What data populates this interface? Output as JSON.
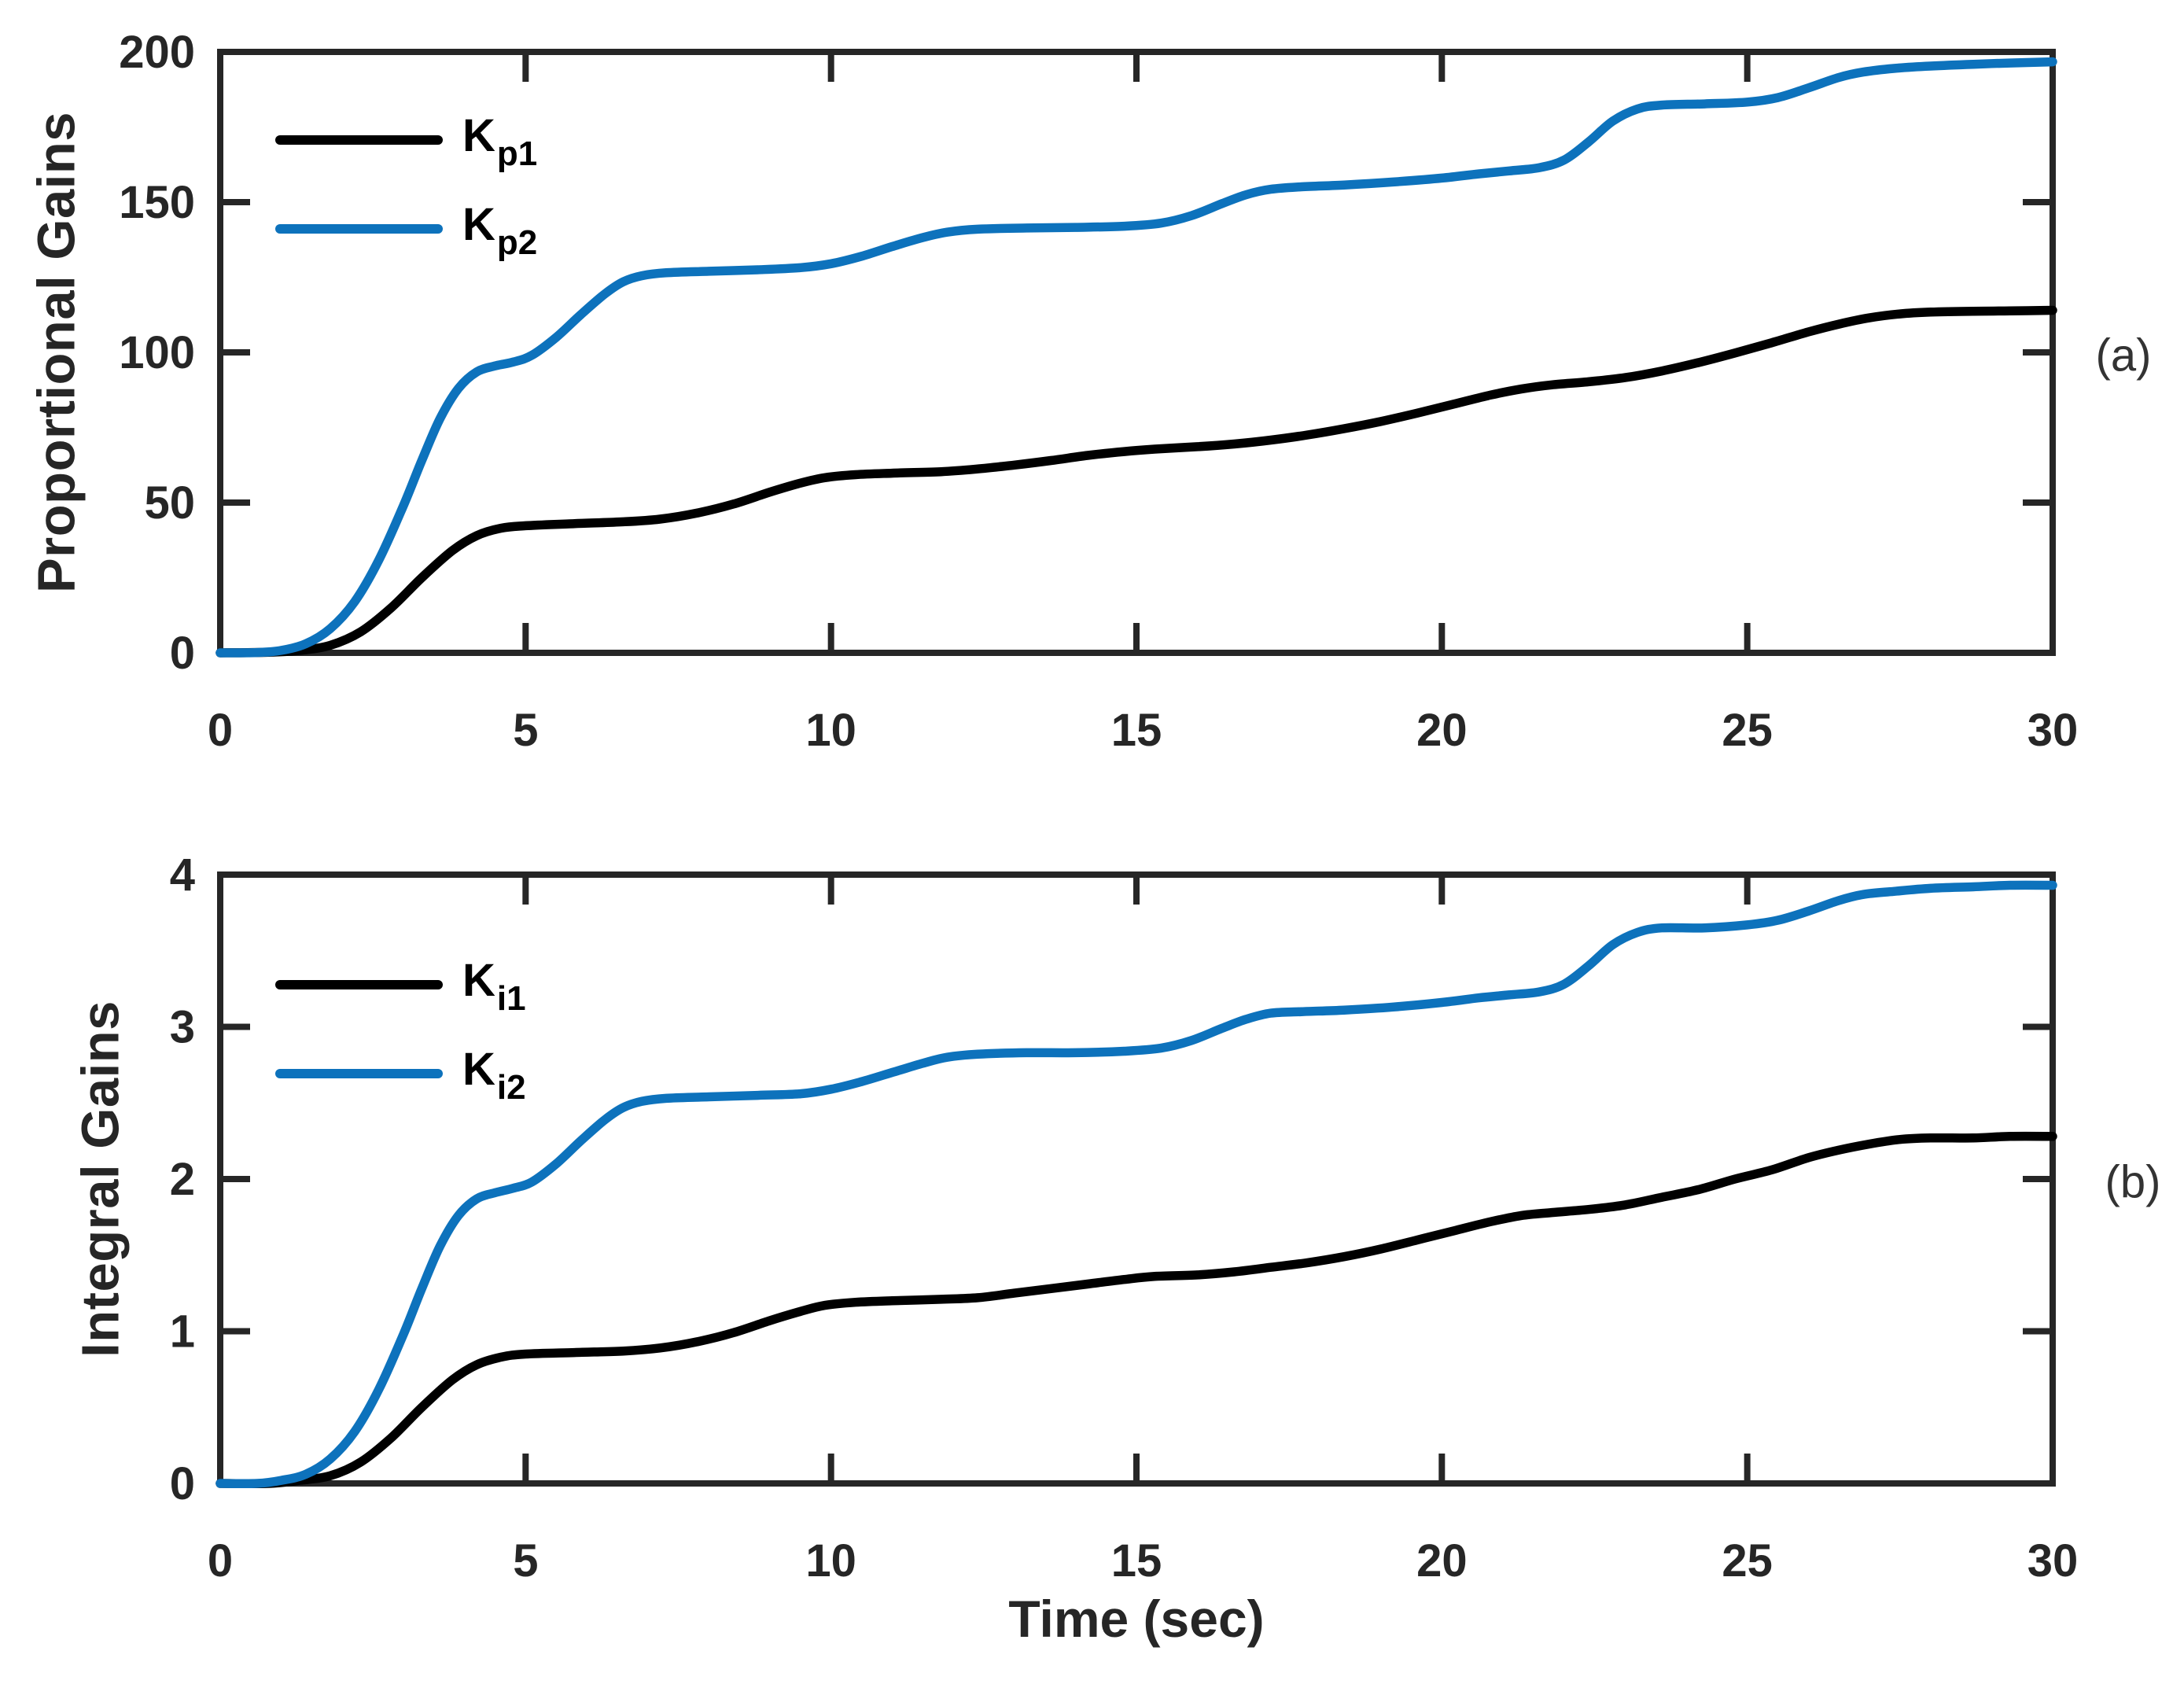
{
  "figure_background": "#ffffff",
  "axis_color": "#262626",
  "chart_data": [
    {
      "type": "line",
      "panel_label": "(a)",
      "title": "",
      "xlabel": "",
      "ylabel": "Proportional Gains",
      "xlim": [
        0,
        30
      ],
      "ylim": [
        0,
        200
      ],
      "xticks": [
        0,
        5,
        10,
        15,
        20,
        25,
        30
      ],
      "yticks": [
        0,
        50,
        100,
        150,
        200
      ],
      "grid": false,
      "legend_position": "upper-left-inside",
      "series": [
        {
          "name": "Kp1",
          "legend_main": "K",
          "legend_sub": "p1",
          "color": "#000000",
          "points": [
            [
              0,
              0
            ],
            [
              0.8,
              0.2
            ],
            [
              1.3,
              0.8
            ],
            [
              1.8,
              2.5
            ],
            [
              2.3,
              7
            ],
            [
              2.8,
              15
            ],
            [
              3.3,
              25
            ],
            [
              3.8,
              34
            ],
            [
              4.2,
              39
            ],
            [
              4.6,
              41.5
            ],
            [
              5,
              42.3
            ],
            [
              5.8,
              43
            ],
            [
              6.6,
              43.6
            ],
            [
              7.2,
              44.5
            ],
            [
              7.8,
              46.5
            ],
            [
              8.4,
              49.5
            ],
            [
              9,
              53.5
            ],
            [
              9.5,
              56.5
            ],
            [
              9.9,
              58.3
            ],
            [
              10.4,
              59.3
            ],
            [
              11,
              59.8
            ],
            [
              11.8,
              60.3
            ],
            [
              12.4,
              61.2
            ],
            [
              13,
              62.5
            ],
            [
              13.6,
              64
            ],
            [
              14.2,
              65.7
            ],
            [
              14.8,
              67
            ],
            [
              15.3,
              67.8
            ],
            [
              16,
              68.6
            ],
            [
              16.6,
              69.5
            ],
            [
              17.2,
              70.8
            ],
            [
              17.8,
              72.5
            ],
            [
              18.4,
              74.6
            ],
            [
              19,
              77
            ],
            [
              19.6,
              79.8
            ],
            [
              20.2,
              82.8
            ],
            [
              20.8,
              85.8
            ],
            [
              21.3,
              87.8
            ],
            [
              21.8,
              89.2
            ],
            [
              22.4,
              90.2
            ],
            [
              23,
              91.6
            ],
            [
              23.6,
              93.8
            ],
            [
              24.2,
              96.6
            ],
            [
              24.8,
              99.8
            ],
            [
              25.4,
              103.2
            ],
            [
              26,
              106.8
            ],
            [
              26.5,
              109.4
            ],
            [
              27,
              111.5
            ],
            [
              27.5,
              112.8
            ],
            [
              28,
              113.4
            ],
            [
              28.7,
              113.7
            ],
            [
              29.3,
              113.8
            ],
            [
              30,
              114
            ]
          ]
        },
        {
          "name": "Kp2",
          "legend_main": "K",
          "legend_sub": "p2",
          "color": "#0d72bc",
          "points": [
            [
              0,
              0
            ],
            [
              0.6,
              0.1
            ],
            [
              1,
              0.8
            ],
            [
              1.4,
              3
            ],
            [
              1.8,
              8
            ],
            [
              2.2,
              17
            ],
            [
              2.6,
              31
            ],
            [
              3,
              49
            ],
            [
              3.3,
              64
            ],
            [
              3.6,
              78
            ],
            [
              3.9,
              88
            ],
            [
              4.2,
              93.5
            ],
            [
              4.5,
              95.5
            ],
            [
              4.8,
              96.8
            ],
            [
              5.1,
              99
            ],
            [
              5.5,
              105
            ],
            [
              5.9,
              112.5
            ],
            [
              6.3,
              119.5
            ],
            [
              6.6,
              123.5
            ],
            [
              6.9,
              125.5
            ],
            [
              7.3,
              126.5
            ],
            [
              8,
              127
            ],
            [
              8.8,
              127.5
            ],
            [
              9.5,
              128.2
            ],
            [
              10,
              129.5
            ],
            [
              10.5,
              132
            ],
            [
              11,
              135.2
            ],
            [
              11.5,
              138.2
            ],
            [
              11.9,
              140
            ],
            [
              12.4,
              141
            ],
            [
              13.2,
              141.4
            ],
            [
              14,
              141.6
            ],
            [
              14.8,
              142
            ],
            [
              15.4,
              143
            ],
            [
              15.9,
              145.5
            ],
            [
              16.4,
              149.5
            ],
            [
              16.8,
              152.5
            ],
            [
              17.2,
              154.3
            ],
            [
              17.7,
              155.1
            ],
            [
              18.4,
              155.7
            ],
            [
              19.2,
              156.7
            ],
            [
              20,
              158
            ],
            [
              20.6,
              159.4
            ],
            [
              21.1,
              160.4
            ],
            [
              21.6,
              161.5
            ],
            [
              22,
              164
            ],
            [
              22.4,
              170
            ],
            [
              22.8,
              177
            ],
            [
              23.2,
              181
            ],
            [
              23.6,
              182.3
            ],
            [
              24.3,
              182.7
            ],
            [
              25,
              183.3
            ],
            [
              25.5,
              184.8
            ],
            [
              26,
              188
            ],
            [
              26.5,
              191.5
            ],
            [
              26.9,
              193.3
            ],
            [
              27.4,
              194.5
            ],
            [
              28,
              195.3
            ],
            [
              28.7,
              195.9
            ],
            [
              29.3,
              196.3
            ],
            [
              30,
              196.7
            ]
          ]
        }
      ]
    },
    {
      "type": "line",
      "panel_label": "(b)",
      "title": "",
      "xlabel": "Time (sec)",
      "ylabel": "Integral Gains",
      "xlim": [
        0,
        30
      ],
      "ylim": [
        0,
        4
      ],
      "xticks": [
        0,
        5,
        10,
        15,
        20,
        25,
        30
      ],
      "yticks": [
        0,
        1,
        2,
        3,
        4
      ],
      "grid": false,
      "legend_position": "upper-left-inside",
      "series": [
        {
          "name": "Ki1",
          "legend_main": "K",
          "legend_sub": "i1",
          "color": "#000000",
          "points": [
            [
              0,
              0
            ],
            [
              0.8,
              0
            ],
            [
              1.3,
              0.02
            ],
            [
              1.8,
              0.05
            ],
            [
              2.3,
              0.14
            ],
            [
              2.8,
              0.3
            ],
            [
              3.3,
              0.5
            ],
            [
              3.8,
              0.68
            ],
            [
              4.2,
              0.78
            ],
            [
              4.6,
              0.83
            ],
            [
              5,
              0.85
            ],
            [
              5.8,
              0.86
            ],
            [
              6.6,
              0.87
            ],
            [
              7.2,
              0.89
            ],
            [
              7.8,
              0.93
            ],
            [
              8.4,
              0.99
            ],
            [
              9,
              1.07
            ],
            [
              9.5,
              1.13
            ],
            [
              9.9,
              1.17
            ],
            [
              10.4,
              1.19
            ],
            [
              11,
              1.2
            ],
            [
              11.8,
              1.21
            ],
            [
              12.4,
              1.22
            ],
            [
              13,
              1.25
            ],
            [
              13.6,
              1.28
            ],
            [
              14.2,
              1.31
            ],
            [
              14.8,
              1.34
            ],
            [
              15.3,
              1.36
            ],
            [
              16,
              1.37
            ],
            [
              16.6,
              1.39
            ],
            [
              17.2,
              1.42
            ],
            [
              17.8,
              1.45
            ],
            [
              18.4,
              1.49
            ],
            [
              19,
              1.54
            ],
            [
              19.6,
              1.6
            ],
            [
              20.2,
              1.66
            ],
            [
              20.8,
              1.72
            ],
            [
              21.3,
              1.76
            ],
            [
              21.8,
              1.78
            ],
            [
              22.4,
              1.8
            ],
            [
              23,
              1.83
            ],
            [
              23.6,
              1.88
            ],
            [
              24.2,
              1.93
            ],
            [
              24.8,
              2
            ],
            [
              25.4,
              2.06
            ],
            [
              26,
              2.14
            ],
            [
              26.5,
              2.19
            ],
            [
              27,
              2.23
            ],
            [
              27.5,
              2.26
            ],
            [
              28,
              2.27
            ],
            [
              28.7,
              2.27
            ],
            [
              29.3,
              2.28
            ],
            [
              30,
              2.28
            ]
          ]
        },
        {
          "name": "Ki2",
          "legend_main": "K",
          "legend_sub": "i2",
          "color": "#0d72bc",
          "points": [
            [
              0,
              0
            ],
            [
              0.6,
              0
            ],
            [
              1,
              0.02
            ],
            [
              1.4,
              0.06
            ],
            [
              1.8,
              0.16
            ],
            [
              2.2,
              0.34
            ],
            [
              2.6,
              0.62
            ],
            [
              3,
              0.98
            ],
            [
              3.3,
              1.28
            ],
            [
              3.6,
              1.56
            ],
            [
              3.9,
              1.76
            ],
            [
              4.2,
              1.87
            ],
            [
              4.5,
              1.91
            ],
            [
              4.8,
              1.94
            ],
            [
              5.1,
              1.98
            ],
            [
              5.5,
              2.1
            ],
            [
              5.9,
              2.25
            ],
            [
              6.3,
              2.39
            ],
            [
              6.6,
              2.47
            ],
            [
              6.9,
              2.51
            ],
            [
              7.3,
              2.53
            ],
            [
              8,
              2.54
            ],
            [
              8.8,
              2.55
            ],
            [
              9.5,
              2.56
            ],
            [
              10,
              2.59
            ],
            [
              10.5,
              2.64
            ],
            [
              11,
              2.7
            ],
            [
              11.5,
              2.76
            ],
            [
              11.9,
              2.8
            ],
            [
              12.4,
              2.82
            ],
            [
              13.2,
              2.83
            ],
            [
              14,
              2.83
            ],
            [
              14.8,
              2.84
            ],
            [
              15.4,
              2.86
            ],
            [
              15.9,
              2.91
            ],
            [
              16.4,
              2.99
            ],
            [
              16.8,
              3.05
            ],
            [
              17.2,
              3.09
            ],
            [
              17.7,
              3.1
            ],
            [
              18.4,
              3.11
            ],
            [
              19.2,
              3.13
            ],
            [
              20,
              3.16
            ],
            [
              20.6,
              3.19
            ],
            [
              21.1,
              3.21
            ],
            [
              21.6,
              3.23
            ],
            [
              22,
              3.28
            ],
            [
              22.4,
              3.4
            ],
            [
              22.8,
              3.54
            ],
            [
              23.2,
              3.62
            ],
            [
              23.6,
              3.65
            ],
            [
              24.3,
              3.65
            ],
            [
              25,
              3.67
            ],
            [
              25.5,
              3.7
            ],
            [
              26,
              3.76
            ],
            [
              26.5,
              3.83
            ],
            [
              26.9,
              3.87
            ],
            [
              27.4,
              3.89
            ],
            [
              28,
              3.91
            ],
            [
              28.7,
              3.92
            ],
            [
              29.3,
              3.93
            ],
            [
              30,
              3.93
            ]
          ]
        }
      ]
    }
  ]
}
